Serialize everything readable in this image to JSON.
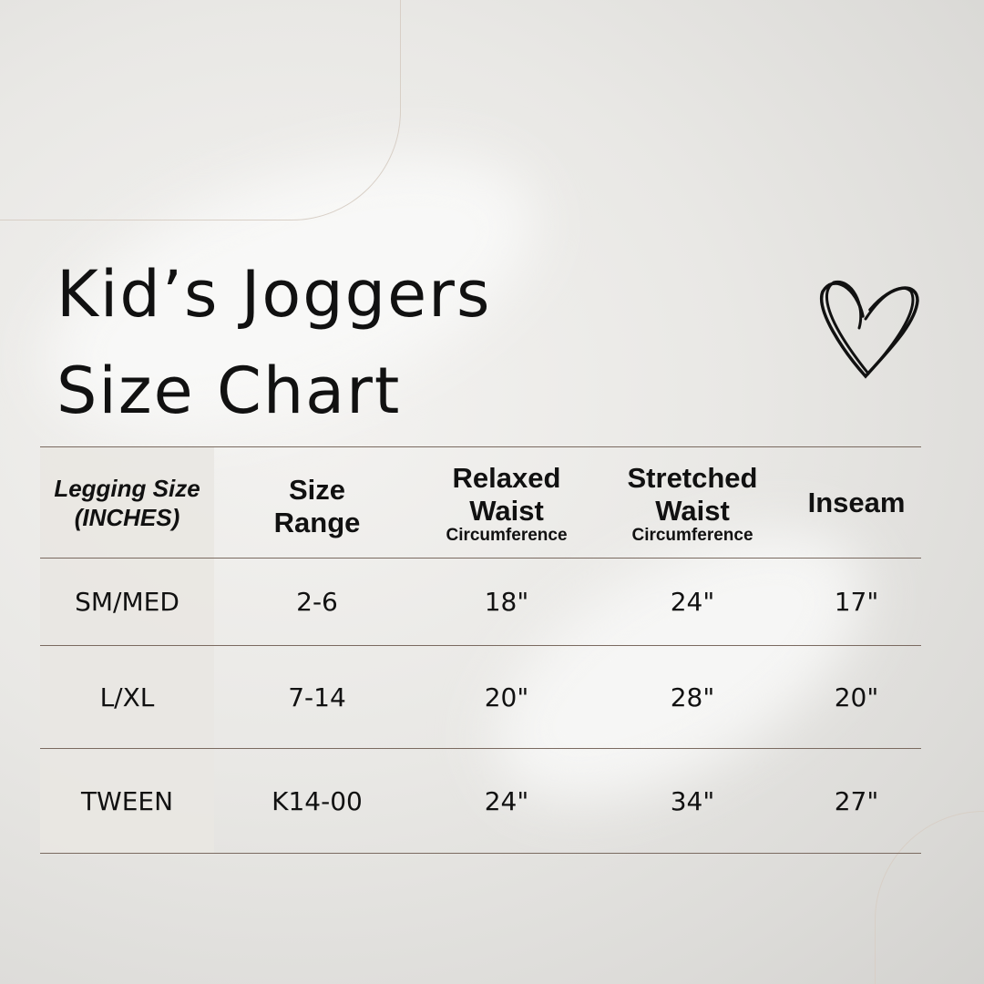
{
  "title": {
    "line1": "Kid’s Joggers",
    "line2": "Size Chart"
  },
  "icons": {
    "heart": "heart-outline-icon"
  },
  "table": {
    "headers": [
      {
        "line1": "Legging Size",
        "line2": "(INCHES)",
        "sub": ""
      },
      {
        "line1": "Size",
        "line2": "Range",
        "sub": ""
      },
      {
        "line1": "Relaxed",
        "line2": "Waist",
        "sub": "Circumference"
      },
      {
        "line1": "Stretched",
        "line2": "Waist",
        "sub": "Circumference"
      },
      {
        "line1": "Inseam",
        "line2": "",
        "sub": ""
      }
    ],
    "rows": [
      [
        "SM/MED",
        "2-6",
        "18\"",
        "24\"",
        "17\""
      ],
      [
        "L/XL",
        "7-14",
        "20\"",
        "28\"",
        "20\""
      ],
      [
        "TWEEN",
        "K14-00",
        "24\"",
        "34\"",
        "27\""
      ]
    ]
  }
}
